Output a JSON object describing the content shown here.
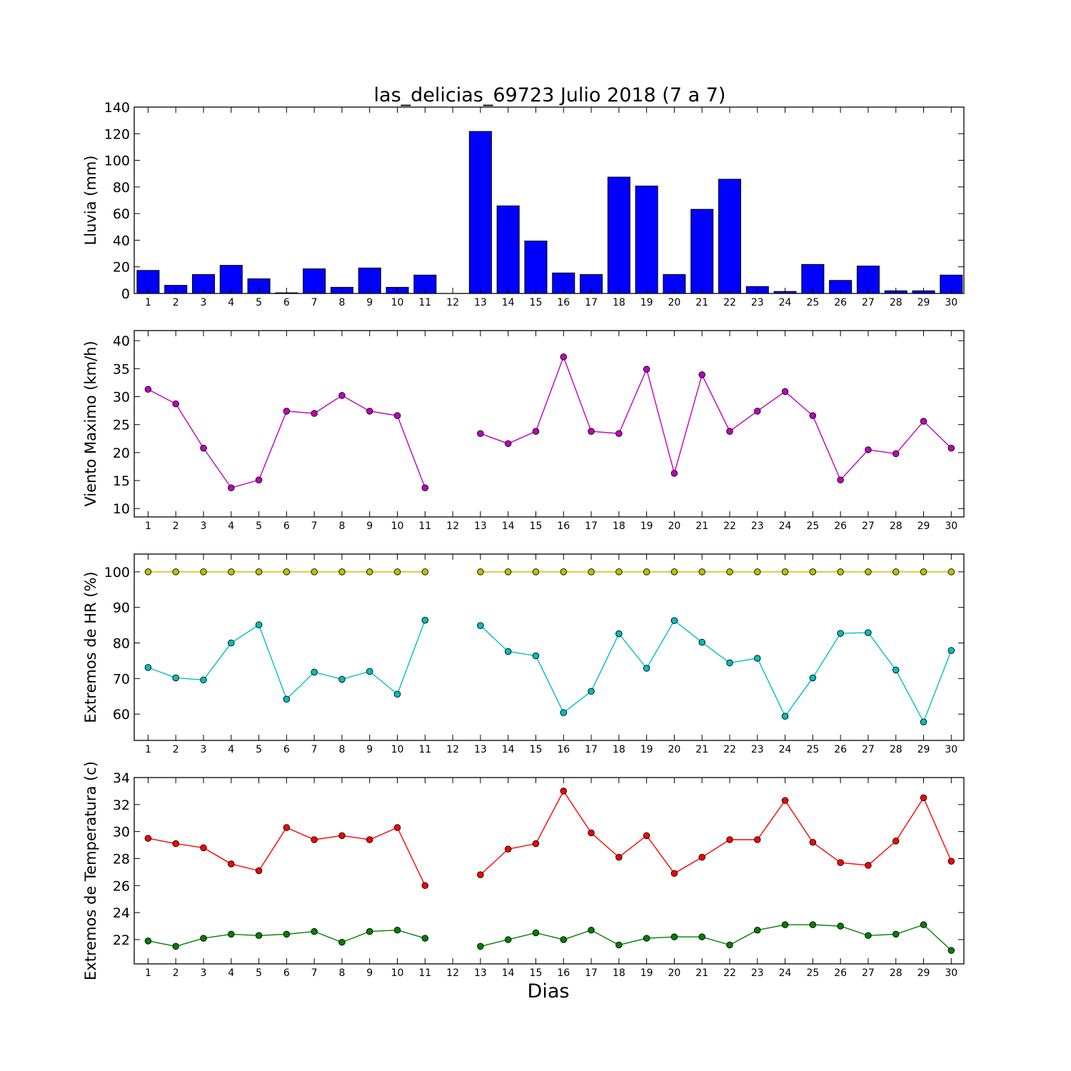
{
  "figure": {
    "title": "las_delicias_69723 Julio 2018  (7 a 7)",
    "xlabel": "Dias"
  },
  "chart_data": [
    {
      "type": "bar",
      "ylabel": "Lluvia (mm)",
      "ylim": [
        0,
        140
      ],
      "yticks": [
        0,
        20,
        40,
        60,
        80,
        100,
        120,
        140
      ],
      "x": [
        1,
        2,
        3,
        4,
        5,
        6,
        7,
        8,
        9,
        10,
        11,
        12,
        13,
        14,
        15,
        16,
        17,
        18,
        19,
        20,
        21,
        22,
        23,
        24,
        25,
        26,
        27,
        28,
        29,
        30
      ],
      "series": [
        {
          "color": "#0000ff",
          "values": [
            17.3,
            6.1,
            14.2,
            21.1,
            11.0,
            0.5,
            18.5,
            4.6,
            19.1,
            4.6,
            13.8,
            null,
            121.7,
            65.8,
            39.4,
            15.4,
            14.2,
            87.4,
            80.7,
            14.2,
            63.2,
            85.8,
            5.2,
            1.5,
            21.8,
            9.8,
            20.6,
            2.0,
            2.0,
            13.8
          ]
        }
      ]
    },
    {
      "type": "line",
      "ylabel": "Viento Maximo (km/h)",
      "ylim": [
        8.5,
        41.8
      ],
      "yticks": [
        10,
        15,
        20,
        25,
        30,
        35,
        40
      ],
      "x": [
        1,
        2,
        3,
        4,
        5,
        6,
        7,
        8,
        9,
        10,
        11,
        12,
        13,
        14,
        15,
        16,
        17,
        18,
        19,
        20,
        21,
        22,
        23,
        24,
        25,
        26,
        27,
        28,
        29,
        30
      ],
      "series": [
        {
          "color": "#bf00bf",
          "values": [
            31.3,
            28.7,
            20.8,
            13.7,
            15.1,
            27.4,
            27.0,
            30.2,
            27.4,
            26.6,
            13.7,
            null,
            23.4,
            21.6,
            23.8,
            37.1,
            23.8,
            23.4,
            34.9,
            16.3,
            33.9,
            23.8,
            27.4,
            30.9,
            26.6,
            15.1,
            20.5,
            19.8,
            25.6,
            20.8
          ]
        }
      ]
    },
    {
      "type": "line",
      "ylabel": "Extremos de HR (%)",
      "ylim": [
        52.6,
        105.0
      ],
      "yticks": [
        60,
        70,
        80,
        90,
        100
      ],
      "x": [
        1,
        2,
        3,
        4,
        5,
        6,
        7,
        8,
        9,
        10,
        11,
        12,
        13,
        14,
        15,
        16,
        17,
        18,
        19,
        20,
        21,
        22,
        23,
        24,
        25,
        26,
        27,
        28,
        29,
        30
      ],
      "series": [
        {
          "color": "#bfbf00",
          "values": [
            100,
            100,
            100,
            100,
            100,
            100,
            100,
            100,
            100,
            100,
            100,
            null,
            100,
            100,
            100,
            100,
            100,
            100,
            100,
            100,
            100,
            100,
            100,
            100,
            100,
            100,
            100,
            100,
            100,
            100
          ]
        },
        {
          "color": "#00bfbf",
          "values": [
            73.1,
            70.2,
            69.6,
            80.0,
            85.1,
            64.2,
            71.8,
            69.8,
            72.0,
            65.6,
            86.4,
            null,
            84.9,
            77.6,
            76.4,
            60.4,
            66.4,
            82.6,
            72.9,
            86.3,
            80.2,
            74.4,
            75.7,
            59.4,
            70.2,
            82.7,
            82.9,
            72.4,
            57.8,
            77.9
          ]
        }
      ]
    },
    {
      "type": "line",
      "ylabel": "Extremos de Temperatura (c)",
      "ylim": [
        20.2,
        34.0
      ],
      "yticks": [
        22,
        24,
        26,
        28,
        30,
        32,
        34
      ],
      "x": [
        1,
        2,
        3,
        4,
        5,
        6,
        7,
        8,
        9,
        10,
        11,
        12,
        13,
        14,
        15,
        16,
        17,
        18,
        19,
        20,
        21,
        22,
        23,
        24,
        25,
        26,
        27,
        28,
        29,
        30
      ],
      "series": [
        {
          "color": "#ff0000",
          "values": [
            29.5,
            29.1,
            28.8,
            27.6,
            27.1,
            30.3,
            29.4,
            29.7,
            29.4,
            30.3,
            26.0,
            null,
            26.8,
            28.7,
            29.1,
            33.0,
            29.9,
            28.1,
            29.7,
            26.9,
            28.1,
            29.4,
            29.4,
            32.3,
            29.2,
            27.7,
            27.5,
            29.3,
            32.5,
            27.8
          ]
        },
        {
          "color": "#008000",
          "values": [
            21.9,
            21.5,
            22.1,
            22.4,
            22.3,
            22.4,
            22.6,
            21.8,
            22.6,
            22.7,
            22.1,
            null,
            21.5,
            22.0,
            22.5,
            22.0,
            22.7,
            21.6,
            22.1,
            22.2,
            22.2,
            21.6,
            22.7,
            23.1,
            23.1,
            23.0,
            22.3,
            22.4,
            23.1,
            21.2
          ]
        }
      ]
    }
  ]
}
